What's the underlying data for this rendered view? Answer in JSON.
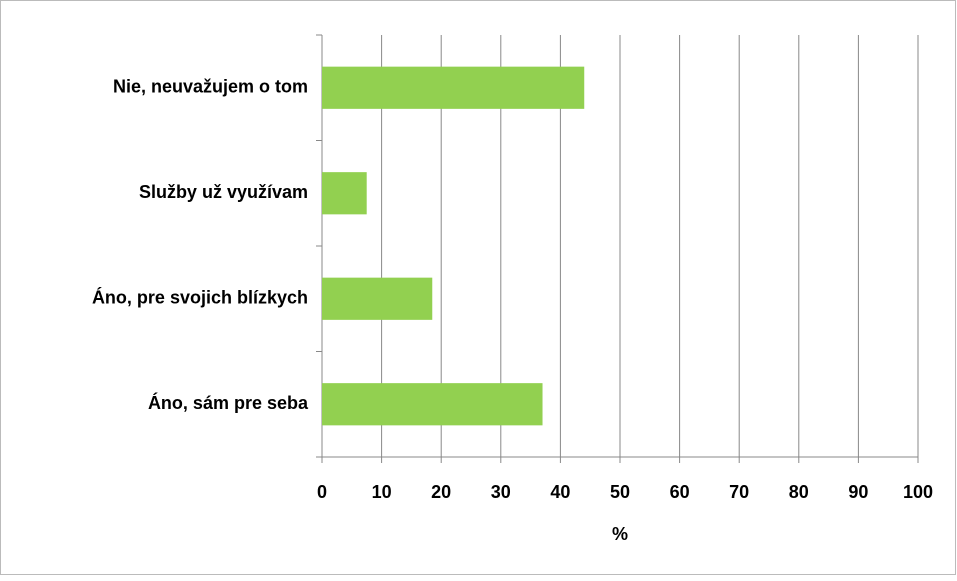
{
  "chart_data": {
    "type": "bar",
    "orientation": "horizontal",
    "categories": [
      "Nie, neuvažujem o tom",
      "Služby už využívam",
      "Áno, pre svojich blízkych",
      "Áno, sám pre seba"
    ],
    "values": [
      44,
      7.5,
      18.5,
      37
    ],
    "color": "#92d050",
    "xlabel": "%",
    "xlim": [
      0,
      100
    ],
    "xticks": [
      0,
      10,
      20,
      30,
      40,
      50,
      60,
      70,
      80,
      90,
      100
    ],
    "grid": true
  }
}
